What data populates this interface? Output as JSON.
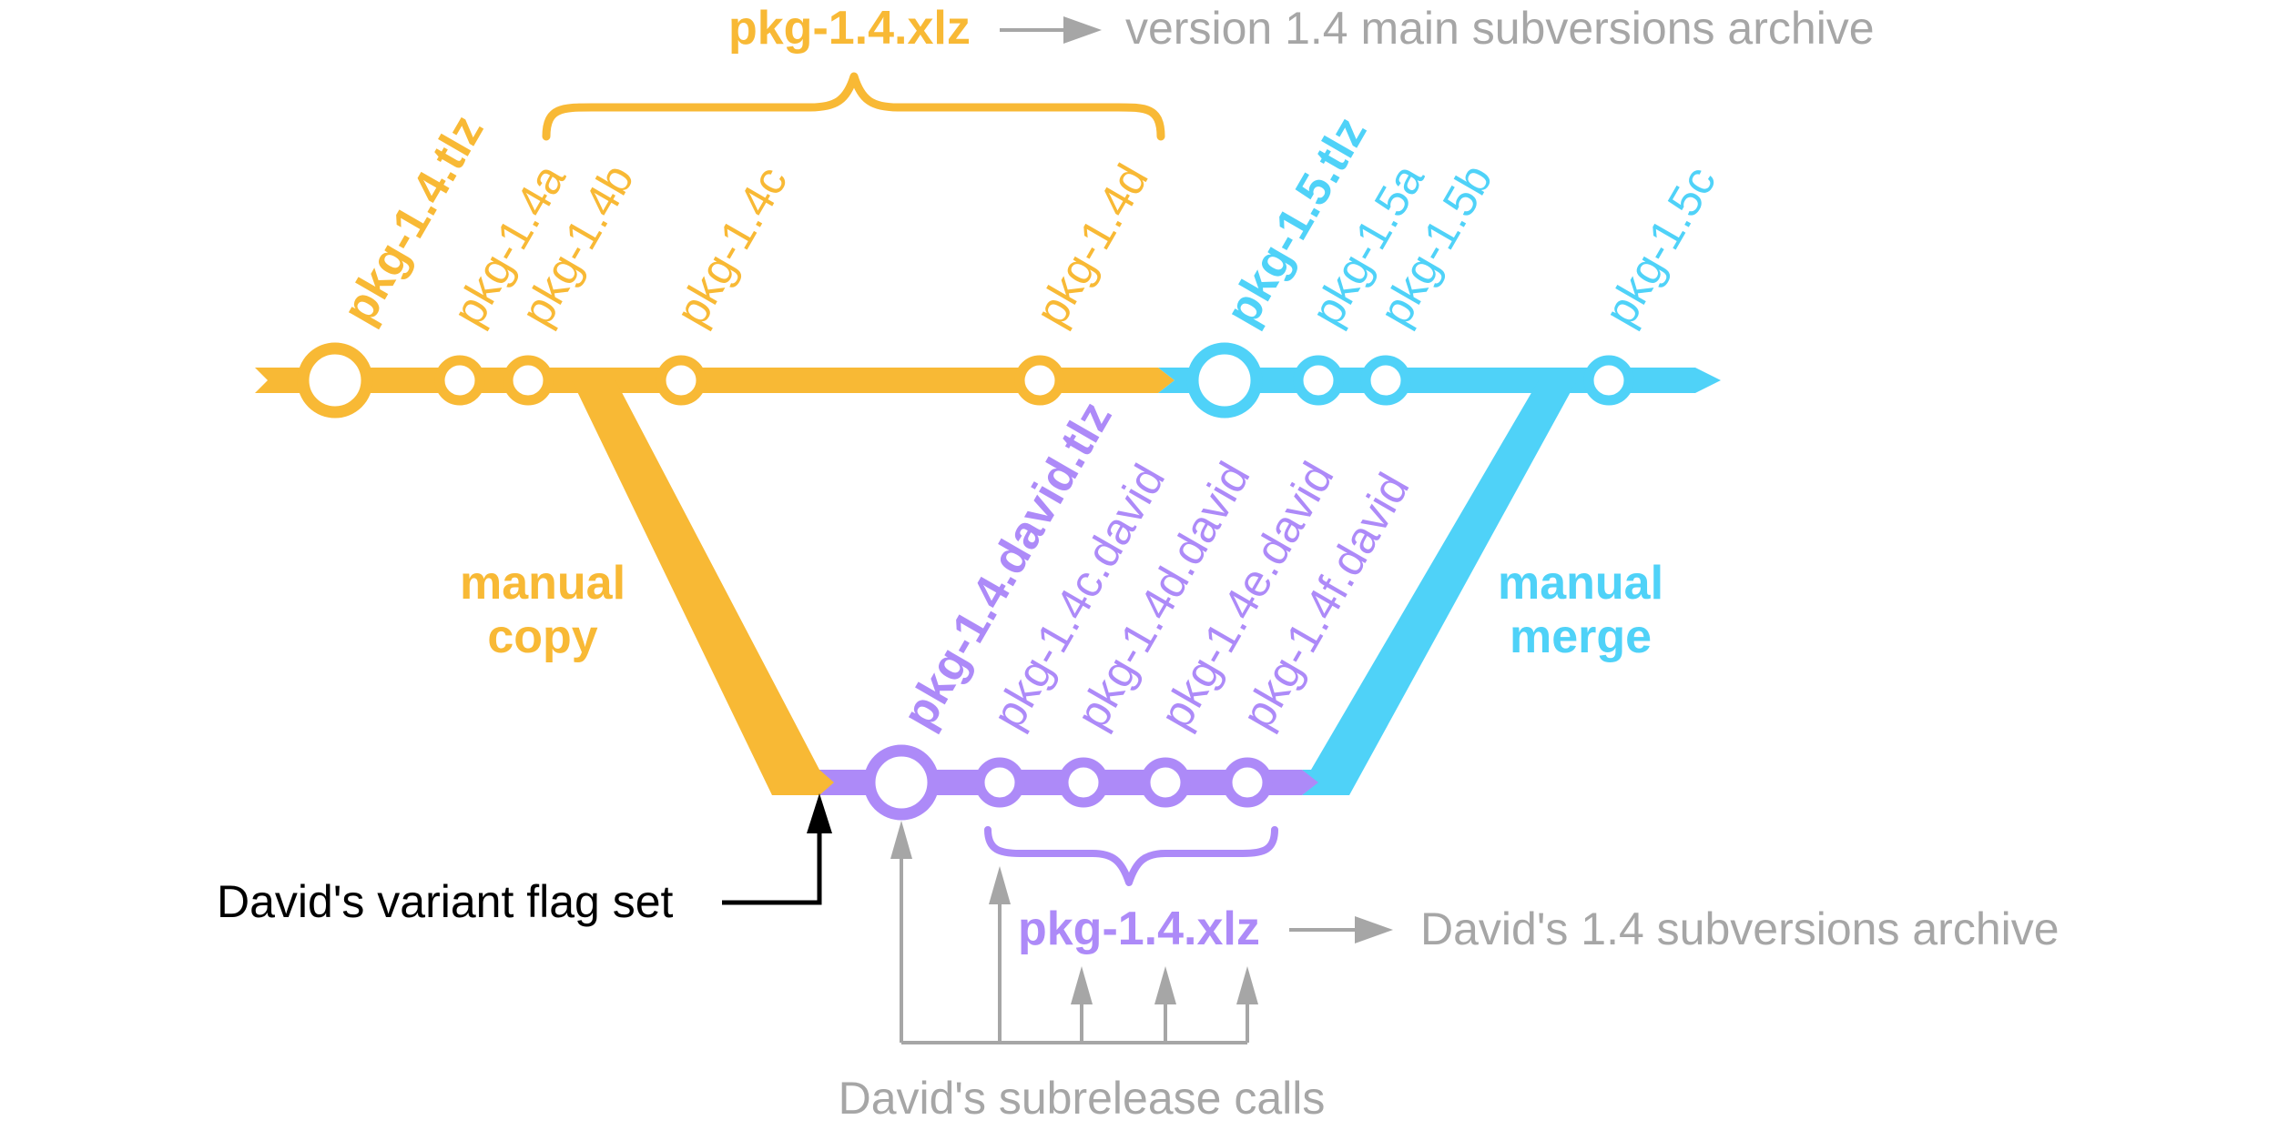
{
  "colors": {
    "main": "#F8B935",
    "next": "#4FD2F8",
    "david": "#AD8AF8",
    "gray": "#A6A6A6",
    "black": "#000000"
  },
  "main_archive": {
    "label": "pkg-1.4.xlz",
    "desc": "version 1.4 main subversions archive"
  },
  "main_line": {
    "v14_label": "pkg-1.4.tlz",
    "subs": [
      "pkg-1.4a",
      "pkg-1.4b",
      "pkg-1.4c",
      "pkg-1.4d"
    ]
  },
  "next_line": {
    "v15_label": "pkg-1.5.tlz",
    "subs": [
      "pkg-1.5a",
      "pkg-1.5b",
      "pkg-1.5c"
    ]
  },
  "david_line": {
    "root_label": "pkg-1.4.david.tlz",
    "subs": [
      "pkg-1.4c.david",
      "pkg-1.4d.david",
      "pkg-1.4e.david",
      "pkg-1.4f.david"
    ]
  },
  "manual_copy": {
    "line1": "manual",
    "line2": "copy"
  },
  "manual_merge": {
    "line1": "manual",
    "line2": "merge"
  },
  "variant_flag": "David's variant flag set",
  "david_archive": {
    "label": "pkg-1.4.xlz",
    "desc": "David's 1.4 subversions archive"
  },
  "subrelease_calls": "David's subrelease calls"
}
